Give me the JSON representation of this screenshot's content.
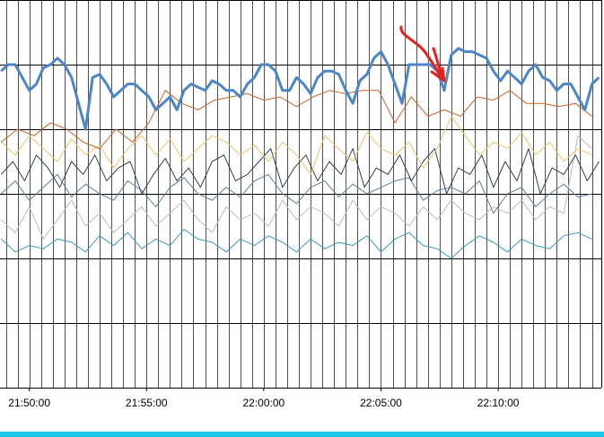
{
  "chart_data": {
    "type": "line",
    "title": "",
    "xlabel": "",
    "ylabel": "",
    "x_tick_labels": [
      "21:50:00",
      "21:55:00",
      "22:00:00",
      "22:05:00",
      "22:10:00"
    ],
    "x_tick_minutes": [
      50,
      55,
      60,
      65,
      70
    ],
    "xlim_minutes": [
      48.75,
      74.4
    ],
    "ylim": [
      0,
      6
    ],
    "grid": true,
    "legend": "none",
    "series": [
      {
        "color": "#4a86c8",
        "width": 3,
        "x": [
          48.8,
          49.1,
          49.4,
          49.7,
          50.0,
          50.3,
          50.6,
          50.9,
          51.2,
          51.5,
          51.8,
          52.1,
          52.4,
          52.7,
          53.0,
          53.3,
          53.6,
          53.9,
          54.2,
          54.5,
          54.8,
          55.1,
          55.4,
          55.7,
          56.0,
          56.3,
          56.6,
          56.9,
          57.2,
          57.5,
          57.8,
          58.1,
          58.4,
          58.7,
          59.0,
          59.3,
          59.6,
          59.9,
          60.2,
          60.5,
          60.8,
          61.1,
          61.4,
          61.7,
          62.0,
          62.3,
          62.6,
          62.9,
          63.2,
          63.5,
          63.8,
          64.1,
          64.4,
          64.7,
          65.0,
          65.3,
          65.6,
          65.9,
          66.2,
          66.5,
          66.8,
          67.1,
          67.4,
          67.7,
          68.0,
          68.3,
          68.6,
          68.9,
          69.2,
          69.5,
          69.8,
          70.1,
          70.4,
          70.7,
          71.0,
          71.3,
          71.6,
          71.9,
          72.2,
          72.5,
          72.8,
          73.1,
          73.4,
          73.7,
          74.0,
          74.3
        ],
        "values": [
          4.9,
          5.0,
          5.0,
          4.8,
          4.6,
          4.7,
          4.95,
          5.0,
          5.1,
          5.0,
          4.8,
          4.4,
          4.0,
          4.8,
          4.85,
          4.7,
          4.5,
          4.6,
          4.7,
          4.7,
          4.6,
          4.5,
          4.3,
          4.4,
          4.5,
          4.3,
          4.6,
          4.7,
          4.65,
          4.6,
          4.75,
          4.7,
          4.6,
          4.6,
          4.5,
          4.7,
          4.8,
          5.0,
          5.0,
          4.9,
          4.6,
          4.6,
          4.8,
          4.7,
          4.55,
          4.8,
          4.9,
          4.9,
          4.85,
          4.6,
          4.4,
          4.75,
          4.85,
          5.1,
          5.2,
          5.0,
          4.7,
          4.4,
          5.0,
          5.0,
          5.0,
          5.0,
          4.9,
          4.6,
          5.15,
          5.25,
          5.2,
          5.2,
          5.15,
          5.1,
          4.9,
          4.75,
          4.9,
          4.8,
          4.7,
          4.9,
          5.0,
          4.8,
          4.75,
          4.6,
          4.7,
          4.7,
          4.5,
          4.3,
          4.7,
          4.8
        ]
      },
      {
        "color": "#c8642c",
        "width": 1,
        "x": [
          48.8,
          49.5,
          50.2,
          50.9,
          51.6,
          52.3,
          53.0,
          53.7,
          54.4,
          55.1,
          55.8,
          56.5,
          57.2,
          57.9,
          58.6,
          59.3,
          60.0,
          60.7,
          61.4,
          62.1,
          62.8,
          63.5,
          64.2,
          64.9,
          65.6,
          66.3,
          67.0,
          67.7,
          68.4,
          69.1,
          69.8,
          70.5,
          71.2,
          71.9,
          72.6,
          73.3,
          74.0
        ],
        "values": [
          3.8,
          4.0,
          3.9,
          4.1,
          4.0,
          3.8,
          3.7,
          4.0,
          3.8,
          4.1,
          4.6,
          4.4,
          4.3,
          4.45,
          4.5,
          4.55,
          4.45,
          4.5,
          4.35,
          4.5,
          4.6,
          4.55,
          4.6,
          4.6,
          4.1,
          4.5,
          4.2,
          4.3,
          4.2,
          4.5,
          4.45,
          4.6,
          4.4,
          4.4,
          4.35,
          4.4,
          4.2
        ]
      },
      {
        "color": "#f5c26b",
        "width": 1,
        "x": [
          48.8,
          49.4,
          50.0,
          50.6,
          51.2,
          51.8,
          52.4,
          53.0,
          53.6,
          54.2,
          54.8,
          55.4,
          56.0,
          56.6,
          57.2,
          57.8,
          58.4,
          59.0,
          59.6,
          60.2,
          60.8,
          61.4,
          62.0,
          62.6,
          63.2,
          63.8,
          64.4,
          65.0,
          65.6,
          66.2,
          66.8,
          67.4,
          68.0,
          68.6,
          69.2,
          69.8,
          70.4,
          71.0,
          71.6,
          72.2,
          72.8,
          73.4,
          74.0
        ],
        "values": [
          3.8,
          3.6,
          3.9,
          3.7,
          3.5,
          3.85,
          3.6,
          3.75,
          3.4,
          3.7,
          3.9,
          3.6,
          3.85,
          3.5,
          3.7,
          3.9,
          3.8,
          3.6,
          3.75,
          3.5,
          3.8,
          3.6,
          3.3,
          3.9,
          3.7,
          3.5,
          3.95,
          3.7,
          3.6,
          3.8,
          3.4,
          3.7,
          4.2,
          3.9,
          3.6,
          3.8,
          3.7,
          3.95,
          3.6,
          3.8,
          3.5,
          3.7,
          3.6
        ]
      },
      {
        "color": "#2f3f55",
        "width": 1,
        "x": [
          48.8,
          49.3,
          49.8,
          50.3,
          50.8,
          51.3,
          51.8,
          52.3,
          52.8,
          53.3,
          53.8,
          54.3,
          54.8,
          55.3,
          55.8,
          56.3,
          56.8,
          57.3,
          57.8,
          58.3,
          58.8,
          59.3,
          59.8,
          60.3,
          60.8,
          61.3,
          61.8,
          62.3,
          62.8,
          63.3,
          63.8,
          64.3,
          64.8,
          65.3,
          65.8,
          66.3,
          66.8,
          67.3,
          67.8,
          68.3,
          68.8,
          69.3,
          69.8,
          70.3,
          70.8,
          71.3,
          71.8,
          72.3,
          72.8,
          73.3,
          73.8,
          74.3
        ],
        "values": [
          3.3,
          3.5,
          3.2,
          3.6,
          3.4,
          3.1,
          3.5,
          3.3,
          3.6,
          3.2,
          3.4,
          3.5,
          3.0,
          3.3,
          3.55,
          3.2,
          3.4,
          3.1,
          3.5,
          3.6,
          3.2,
          3.3,
          3.5,
          3.7,
          3.1,
          3.4,
          3.6,
          3.2,
          3.5,
          3.3,
          3.7,
          3.1,
          3.4,
          3.3,
          3.6,
          3.2,
          3.5,
          3.7,
          3.0,
          3.4,
          3.3,
          3.6,
          3.1,
          3.5,
          3.2,
          3.7,
          3.0,
          3.4,
          3.3,
          3.6,
          3.2,
          3.5
        ]
      },
      {
        "color": "#5d7f9f",
        "width": 1,
        "x": [
          48.8,
          49.4,
          50.0,
          50.6,
          51.2,
          51.8,
          52.4,
          53.0,
          53.6,
          54.2,
          54.8,
          55.4,
          56.0,
          56.6,
          57.2,
          57.8,
          58.4,
          59.0,
          59.6,
          60.2,
          60.8,
          61.4,
          62.0,
          62.6,
          63.2,
          63.8,
          64.4,
          65.0,
          65.6,
          66.2,
          66.8,
          67.4,
          68.0,
          68.6,
          69.2,
          69.8,
          70.4,
          71.0,
          71.6,
          72.2,
          72.8,
          73.4,
          74.0
        ],
        "values": [
          3.0,
          3.2,
          2.9,
          3.1,
          3.3,
          2.95,
          3.15,
          3.0,
          2.9,
          3.2,
          3.05,
          2.8,
          3.1,
          3.25,
          3.0,
          2.9,
          3.1,
          2.95,
          3.2,
          3.3,
          3.0,
          2.85,
          3.1,
          3.2,
          2.95,
          3.15,
          3.0,
          3.1,
          3.2,
          3.25,
          2.9,
          3.05,
          3.1,
          3.0,
          3.2,
          2.7,
          3.0,
          3.1,
          2.8,
          3.0,
          3.15,
          2.95,
          3.0
        ]
      },
      {
        "color": "#bdbdbd",
        "width": 1,
        "x": [
          48.8,
          49.4,
          50.0,
          50.6,
          51.2,
          51.8,
          52.4,
          53.0,
          53.6,
          54.2,
          54.8,
          55.4,
          56.0,
          56.6,
          57.2,
          57.8,
          58.4,
          59.0,
          59.6,
          60.2,
          60.8,
          61.4,
          62.0,
          62.6,
          63.2,
          63.8,
          64.4,
          65.0,
          65.6,
          66.2,
          66.8,
          67.4,
          68.0,
          68.6,
          69.2,
          69.8,
          70.4,
          71.0,
          71.6,
          72.2,
          72.8,
          73.4,
          74.0
        ],
        "values": [
          2.6,
          2.4,
          2.8,
          2.3,
          2.6,
          2.9,
          2.5,
          2.7,
          2.4,
          2.6,
          2.8,
          2.5,
          2.7,
          2.9,
          2.6,
          2.4,
          2.8,
          2.6,
          2.7,
          2.5,
          2.9,
          2.6,
          2.8,
          2.7,
          2.5,
          2.9,
          2.6,
          2.8,
          2.7,
          2.5,
          2.8,
          2.6,
          2.9,
          2.7,
          2.6,
          2.8,
          2.7,
          2.9,
          2.6,
          2.8,
          2.7,
          3.9,
          3.7
        ]
      },
      {
        "color": "#3a9ac0",
        "width": 1,
        "x": [
          48.8,
          49.4,
          50.0,
          50.6,
          51.2,
          51.8,
          52.4,
          53.0,
          53.6,
          54.2,
          54.8,
          55.4,
          56.0,
          56.6,
          57.2,
          57.8,
          58.4,
          59.0,
          59.6,
          60.2,
          60.8,
          61.4,
          62.0,
          62.6,
          63.2,
          63.8,
          64.4,
          65.0,
          65.6,
          66.2,
          66.8,
          67.4,
          68.0,
          68.6,
          69.2,
          69.8,
          70.4,
          71.0,
          71.6,
          72.2,
          72.8,
          73.4,
          74.0
        ],
        "values": [
          2.3,
          2.1,
          2.2,
          2.15,
          2.3,
          2.25,
          2.1,
          2.35,
          2.2,
          2.4,
          2.15,
          2.3,
          2.2,
          2.45,
          2.3,
          2.25,
          2.1,
          2.3,
          2.2,
          2.35,
          2.25,
          2.1,
          2.3,
          2.15,
          2.25,
          2.2,
          2.35,
          2.1,
          2.3,
          2.4,
          2.2,
          2.15,
          2.0,
          2.2,
          2.35,
          2.25,
          2.1,
          2.3,
          2.2,
          2.15,
          2.35,
          2.4,
          2.3
        ]
      }
    ],
    "annotation": {
      "type": "hand-drawn-arrow",
      "color": "#e8201c",
      "points_to_minute": 67.7
    }
  },
  "footer_bar_color": "#1fc8e8"
}
